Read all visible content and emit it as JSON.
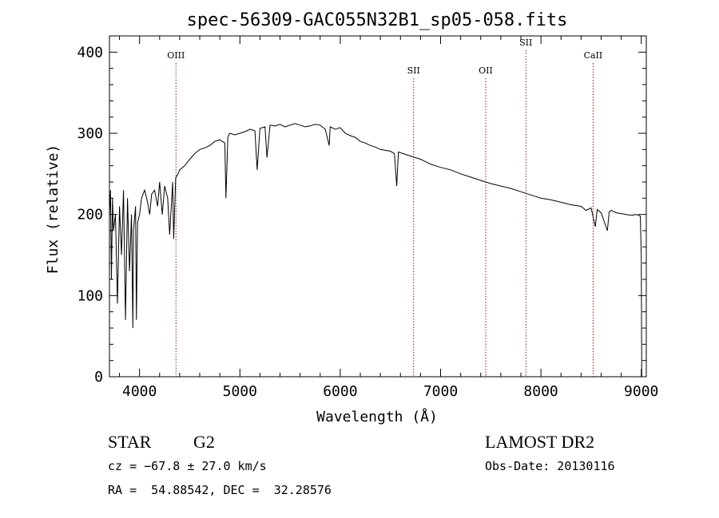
{
  "chart_data": {
    "type": "line",
    "title": "spec-56309-GAC055N32B1_sp05-058.fits",
    "xlabel": "Wavelength (Å)",
    "ylabel": "Flux (relative)",
    "xlim": [
      3700,
      9050
    ],
    "ylim": [
      0,
      420
    ],
    "xticks": [
      4000,
      5000,
      6000,
      7000,
      8000,
      9000
    ],
    "yticks": [
      0,
      100,
      200,
      300,
      400
    ],
    "line_color": "#000000",
    "marker_color": "#8b1a1a",
    "lines": [
      {
        "label": "OIII",
        "wavelength": 4363
      },
      {
        "label": "SII",
        "wavelength": 6731
      },
      {
        "label": "OII",
        "wavelength": 7450
      },
      {
        "label": "SII",
        "wavelength": 7850
      },
      {
        "label": "CaII",
        "wavelength": 8520
      }
    ],
    "series": [
      {
        "x": [
          3700,
          3710,
          3720,
          3730,
          3740,
          3760,
          3780,
          3800,
          3820,
          3840,
          3860,
          3880,
          3900,
          3920,
          3933,
          3940,
          3960,
          3968,
          3980,
          4000,
          4020,
          4050,
          4080,
          4101,
          4120,
          4150,
          4180,
          4200,
          4226,
          4250,
          4280,
          4300,
          4330,
          4340,
          4360,
          4383,
          4400,
          4450,
          4500,
          4550,
          4600,
          4650,
          4700,
          4750,
          4800,
          4850,
          4861,
          4880,
          4900,
          4950,
          5000,
          5050,
          5100,
          5150,
          5172,
          5200,
          5250,
          5270,
          5300,
          5350,
          5400,
          5450,
          5500,
          5550,
          5600,
          5650,
          5700,
          5750,
          5800,
          5850,
          5890,
          5900,
          5950,
          6000,
          6050,
          6100,
          6150,
          6200,
          6250,
          6300,
          6350,
          6400,
          6450,
          6500,
          6540,
          6563,
          6580,
          6600,
          6650,
          6700,
          6750,
          6800,
          6850,
          6900,
          6950,
          7000,
          7100,
          7200,
          7300,
          7400,
          7500,
          7600,
          7700,
          7800,
          7900,
          8000,
          8100,
          8200,
          8300,
          8400,
          8450,
          8500,
          8542,
          8560,
          8600,
          8662,
          8680,
          8700,
          8750,
          8800,
          8850,
          8900,
          8950,
          8990,
          9000,
          9005
        ],
        "y": [
          200,
          230,
          120,
          220,
          180,
          200,
          90,
          210,
          150,
          230,
          70,
          220,
          130,
          200,
          60,
          180,
          210,
          70,
          190,
          200,
          220,
          230,
          215,
          200,
          225,
          230,
          210,
          240,
          200,
          235,
          220,
          175,
          240,
          170,
          245,
          250,
          255,
          260,
          268,
          275,
          280,
          282,
          285,
          290,
          292,
          288,
          220,
          296,
          300,
          298,
          300,
          302,
          305,
          303,
          255,
          306,
          308,
          270,
          310,
          309,
          311,
          308,
          310,
          312,
          310,
          308,
          309,
          311,
          310,
          305,
          285,
          308,
          305,
          307,
          300,
          297,
          295,
          290,
          288,
          285,
          283,
          280,
          279,
          278,
          275,
          235,
          277,
          276,
          274,
          272,
          270,
          268,
          265,
          262,
          260,
          258,
          255,
          250,
          246,
          242,
          238,
          235,
          232,
          228,
          224,
          220,
          218,
          215,
          212,
          210,
          205,
          208,
          185,
          206,
          202,
          180,
          203,
          205,
          202,
          201,
          200,
          199,
          200,
          198,
          150,
          0
        ]
      }
    ]
  },
  "info": {
    "object_type": "STAR",
    "subclass": "G2",
    "survey": "LAMOST DR2",
    "cz": "cz = −67.8 ± 27.0 km/s",
    "obs_date": "Obs-Date: 20130116",
    "radec": "RA =  54.88542, DEC =  32.28576"
  }
}
